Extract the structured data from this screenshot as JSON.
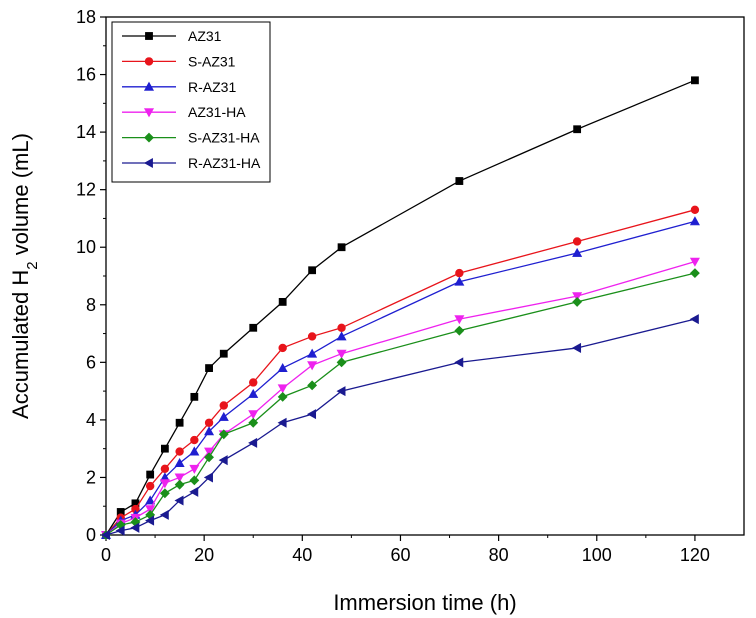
{
  "chart_data": {
    "type": "line",
    "title": "",
    "xlabel": "Immersion time (h)",
    "ylabel": "Accumulated H₂ volume (mL)",
    "ylabel_parts": {
      "before": "Accumulated H",
      "subscript": "2",
      "after": " volume (mL)"
    },
    "xlim": [
      0,
      130
    ],
    "ylim": [
      0,
      18
    ],
    "xticks": [
      0,
      20,
      40,
      60,
      80,
      100,
      120
    ],
    "yticks": [
      0,
      2,
      4,
      6,
      8,
      10,
      12,
      14,
      16,
      18
    ],
    "grid": false,
    "legend_position": "top-left",
    "x": [
      0,
      3,
      6,
      9,
      12,
      15,
      18,
      21,
      24,
      30,
      36,
      42,
      48,
      72,
      96,
      120
    ],
    "series": [
      {
        "name": "AZ31",
        "color": "#000000",
        "marker": "square",
        "values": [
          0,
          0.8,
          1.1,
          2.1,
          3.0,
          3.9,
          4.8,
          5.8,
          6.3,
          7.2,
          8.1,
          9.2,
          10.0,
          12.3,
          14.1,
          15.8
        ]
      },
      {
        "name": "S-AZ31",
        "color": "#e8141b",
        "marker": "circle",
        "values": [
          0,
          0.6,
          0.9,
          1.7,
          2.3,
          2.9,
          3.3,
          3.9,
          4.5,
          5.3,
          6.5,
          6.9,
          7.2,
          9.1,
          10.2,
          11.3
        ]
      },
      {
        "name": "R-AZ31",
        "color": "#1f1fd0",
        "marker": "triangle-up",
        "values": [
          0,
          0.5,
          0.7,
          1.2,
          2.0,
          2.5,
          2.9,
          3.6,
          4.1,
          4.9,
          5.8,
          6.3,
          6.9,
          8.8,
          9.8,
          10.9
        ]
      },
      {
        "name": "AZ31-HA",
        "color": "#ee22ee",
        "marker": "triangle-down",
        "values": [
          0,
          0.4,
          0.6,
          0.9,
          1.8,
          2.0,
          2.3,
          2.9,
          3.5,
          4.2,
          5.1,
          5.9,
          6.3,
          7.5,
          8.3,
          9.5
        ]
      },
      {
        "name": "S-AZ31-HA",
        "color": "#1a8f1a",
        "marker": "diamond",
        "values": [
          0,
          0.35,
          0.45,
          0.7,
          1.45,
          1.75,
          1.9,
          2.7,
          3.5,
          3.9,
          4.8,
          5.2,
          6.0,
          7.1,
          8.1,
          9.1
        ]
      },
      {
        "name": "R-AZ31-HA",
        "color": "#1a1a90",
        "marker": "triangle-left",
        "values": [
          0,
          0.15,
          0.25,
          0.5,
          0.7,
          1.2,
          1.5,
          2.0,
          2.6,
          3.2,
          3.9,
          4.2,
          5.0,
          6.0,
          6.5,
          7.5
        ]
      }
    ]
  }
}
